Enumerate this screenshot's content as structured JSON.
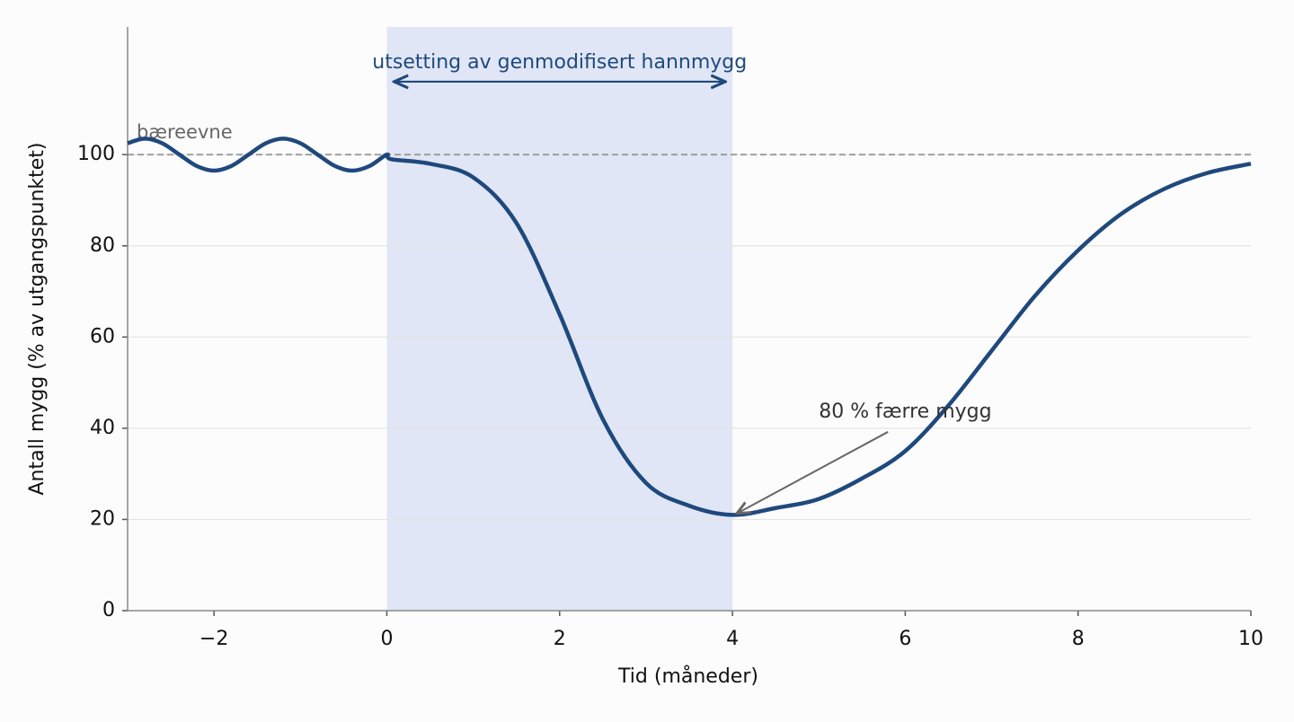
{
  "chart_data": {
    "type": "line",
    "x_label": "Tid (måneder)",
    "y_label": "Antall mygg (% av utgangspunktet)",
    "x": [
      -3,
      -2.8,
      -2.6,
      -2.4,
      -2.2,
      -2,
      -1.8,
      -1.6,
      -1.4,
      -1.2,
      -1,
      -0.8,
      -0.6,
      -0.4,
      -0.2,
      0,
      0.05,
      0.5,
      1,
      1.5,
      2,
      2.5,
      3,
      3.5,
      4,
      4.5,
      5,
      5.5,
      6,
      6.5,
      7,
      7.5,
      8,
      8.5,
      9,
      9.5,
      10
    ],
    "series": [
      {
        "color": "#1f497d",
        "values": [
          102.5,
          103.5,
          102.5,
          100,
          97.5,
          96.5,
          97.5,
          100,
          102.5,
          103.5,
          102.5,
          100,
          97.5,
          96.5,
          97.5,
          100,
          99,
          98,
          95,
          85,
          65,
          42,
          28,
          23,
          21,
          22.5,
          24.5,
          29,
          35,
          45,
          57,
          69,
          79,
          87,
          92.5,
          96,
          98
        ]
      }
    ],
    "xlim": [
      -3,
      10
    ],
    "ylim": [
      0,
      128
    ],
    "xticks": [
      {
        "value": -2,
        "label": "−2"
      },
      0,
      2,
      4,
      6,
      8,
      10
    ],
    "yticks": [
      0,
      20,
      40,
      60,
      80,
      100
    ],
    "grid": true,
    "span": {
      "x": [
        0,
        4
      ],
      "color": "#e0e6f5",
      "label": "utsetting av genmodifisert hannmygg",
      "arrow_y": 116
    },
    "reference_line": {
      "y": 100,
      "label": "bæreevne"
    },
    "annotation": {
      "text": "80 % færre mygg",
      "x": 5,
      "y": 43.5,
      "arrow_from": [
        5.8,
        39.2
      ],
      "arrow_to": [
        4.05,
        21.3
      ]
    }
  }
}
